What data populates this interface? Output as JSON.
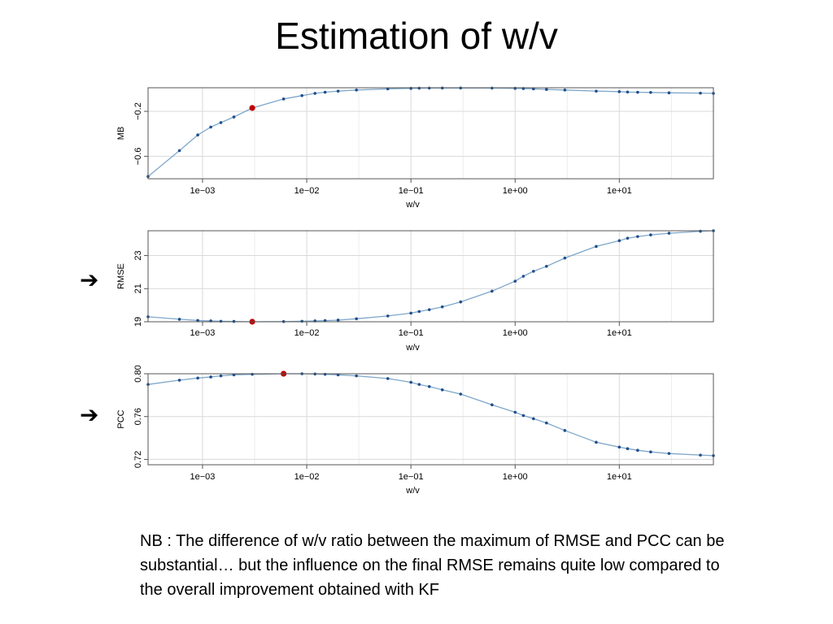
{
  "slide": {
    "title": "Estimation of w/v",
    "note": "NB : The difference of w/v ratio between the maximum of RMSE and PCC can be substantial… but the influence on the final RMSE remains quite low compared to the overall improvement obtained with KF",
    "arrow_glyph": "➔"
  },
  "colors": {
    "line": "#7fa7c9",
    "point": "#1f4e8c",
    "highlight": "#c00000",
    "grid": "#d9d9d9",
    "frame": "#555555"
  },
  "chart_data": [
    {
      "id": "mb",
      "type": "line",
      "xscale": "log",
      "xlabel": "w/v",
      "ylabel": "MB",
      "xlim": [
        0.0003,
        80
      ],
      "ylim": [
        -0.8,
        0.01
      ],
      "xticks": [
        0.001,
        0.01,
        0.1,
        1,
        10
      ],
      "xtick_labels": [
        "1e−03",
        "1e−02",
        "1e−01",
        "1e+00",
        "1e+01"
      ],
      "yticks": [
        -0.6,
        -0.2
      ],
      "ytick_labels": [
        "−0.6",
        "−0.2"
      ],
      "highlight_index": 6,
      "x": [
        0.0003,
        0.0006,
        0.0009,
        0.0012,
        0.0015,
        0.002,
        0.003,
        0.006,
        0.009,
        0.012,
        0.015,
        0.02,
        0.03,
        0.06,
        0.1,
        0.12,
        0.15,
        0.2,
        0.3,
        0.6,
        1.0,
        1.2,
        1.5,
        2.0,
        3.0,
        6.0,
        10,
        12,
        15,
        20,
        30,
        60,
        80
      ],
      "y": [
        -0.78,
        -0.55,
        -0.41,
        -0.34,
        -0.3,
        -0.25,
        -0.17,
        -0.09,
        -0.06,
        -0.04,
        -0.03,
        -0.02,
        -0.01,
        0.0,
        0.005,
        0.006,
        0.007,
        0.008,
        0.008,
        0.007,
        0.005,
        0.003,
        0.0,
        -0.005,
        -0.01,
        -0.02,
        -0.025,
        -0.028,
        -0.03,
        -0.032,
        -0.035,
        -0.038,
        -0.04
      ]
    },
    {
      "id": "rmse",
      "type": "line",
      "xscale": "log",
      "xlabel": "w/v",
      "ylabel": "RMSE",
      "xlim": [
        0.0003,
        80
      ],
      "ylim": [
        19,
        24.5
      ],
      "xticks": [
        0.001,
        0.01,
        0.1,
        1,
        10
      ],
      "xtick_labels": [
        "1e−03",
        "1e−02",
        "1e−01",
        "1e+00",
        "1e+01"
      ],
      "yticks": [
        19,
        21,
        23
      ],
      "ytick_labels": [
        "19",
        "21",
        "23"
      ],
      "highlight_index": 6,
      "x": [
        0.0003,
        0.0006,
        0.0009,
        0.0012,
        0.0015,
        0.002,
        0.003,
        0.006,
        0.009,
        0.012,
        0.015,
        0.02,
        0.03,
        0.06,
        0.1,
        0.12,
        0.15,
        0.2,
        0.3,
        0.6,
        1.0,
        1.2,
        1.5,
        2.0,
        3.0,
        6.0,
        10,
        12,
        15,
        20,
        30,
        60,
        80
      ],
      "y": [
        19.3,
        19.15,
        19.08,
        19.05,
        19.03,
        19.02,
        19.0,
        19.01,
        19.03,
        19.05,
        19.07,
        19.1,
        19.18,
        19.35,
        19.52,
        19.62,
        19.73,
        19.9,
        20.2,
        20.85,
        21.45,
        21.75,
        22.05,
        22.35,
        22.85,
        23.55,
        23.9,
        24.05,
        24.15,
        24.25,
        24.35,
        24.47,
        24.5
      ]
    },
    {
      "id": "pcc",
      "type": "line",
      "xscale": "log",
      "xlabel": "w/v",
      "ylabel": "PCC",
      "xlim": [
        0.0003,
        80
      ],
      "ylim": [
        0.715,
        0.8
      ],
      "xticks": [
        0.001,
        0.01,
        0.1,
        1,
        10
      ],
      "xtick_labels": [
        "1e−03",
        "1e−02",
        "1e−01",
        "1e+00",
        "1e+01"
      ],
      "yticks": [
        0.72,
        0.76,
        0.8
      ],
      "ytick_labels": [
        "0.72",
        "0.76",
        "0.80"
      ],
      "highlight_index": 7,
      "x": [
        0.0003,
        0.0006,
        0.0009,
        0.0012,
        0.0015,
        0.002,
        0.003,
        0.006,
        0.009,
        0.012,
        0.015,
        0.02,
        0.03,
        0.06,
        0.1,
        0.12,
        0.15,
        0.2,
        0.3,
        0.6,
        1.0,
        1.2,
        1.5,
        2.0,
        3.0,
        6.0,
        10,
        12,
        15,
        20,
        30,
        60,
        80
      ],
      "y": [
        0.79,
        0.794,
        0.796,
        0.797,
        0.798,
        0.799,
        0.7995,
        0.8,
        0.8,
        0.7998,
        0.7995,
        0.799,
        0.798,
        0.7955,
        0.792,
        0.79,
        0.788,
        0.785,
        0.781,
        0.771,
        0.764,
        0.761,
        0.758,
        0.754,
        0.747,
        0.736,
        0.7315,
        0.73,
        0.7285,
        0.727,
        0.7255,
        0.724,
        0.7235
      ]
    }
  ]
}
